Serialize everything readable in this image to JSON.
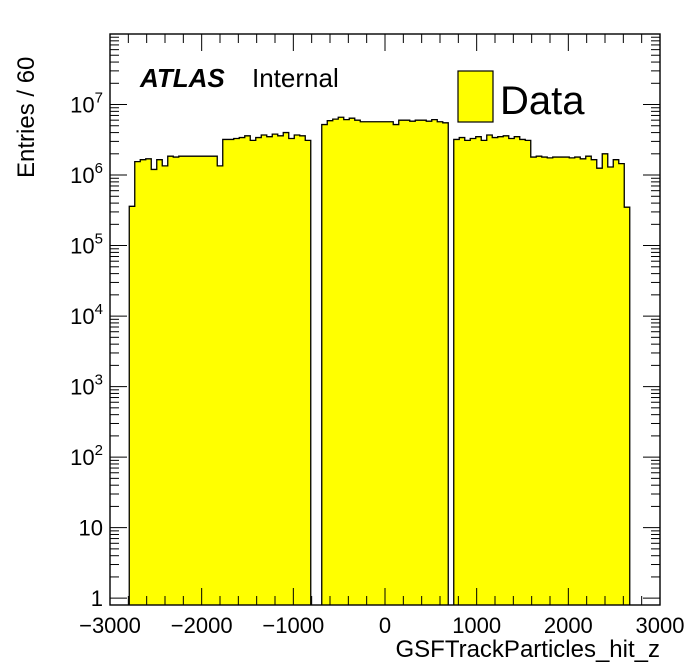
{
  "chart_data": {
    "type": "bar",
    "histogram": true,
    "xlabel": "GSFTrackParticles_hit_z",
    "ylabel": "Entries / 60",
    "xlim": [
      -3000,
      3000
    ],
    "ylim": [
      0.8,
      100000000
    ],
    "y_scale": "log",
    "x_tick_labels": [
      "−3000",
      "−2000",
      "−1000",
      "0",
      "1000",
      "2000",
      "3000"
    ],
    "x_tick_values": [
      -3000,
      -2000,
      -1000,
      0,
      1000,
      2000,
      3000
    ],
    "y_tick_labels": [
      {
        "value": 1,
        "base": "1",
        "exp": ""
      },
      {
        "value": 10,
        "base": "10",
        "exp": ""
      },
      {
        "value": 100,
        "base": "10",
        "exp": "2"
      },
      {
        "value": 1000,
        "base": "10",
        "exp": "3"
      },
      {
        "value": 10000,
        "base": "10",
        "exp": "4"
      },
      {
        "value": 100000,
        "base": "10",
        "exp": "5"
      },
      {
        "value": 1000000,
        "base": "10",
        "exp": "6"
      },
      {
        "value": 10000000,
        "base": "10",
        "exp": "7"
      }
    ],
    "bin_width": 60,
    "fill_color": "#ffff00",
    "line_color": "#000000",
    "series": [
      {
        "name": "Data",
        "segments": [
          {
            "x_start": -2790,
            "values": [
              360000,
              1550000,
              1650000,
              1700000,
              1200000,
              1650000,
              1350000,
              1850000,
              1800000,
              1850000,
              1850000,
              1850000,
              1850000,
              1850000,
              1850000,
              1850000,
              1350000,
              3200000,
              3200000,
              3300000,
              3400000,
              3600000,
              3100000,
              3400000,
              3700000,
              3500000,
              3800000,
              3600000,
              4000000,
              3300000,
              3700000,
              3600000,
              3100000
            ]
          },
          {
            "x_start": -690,
            "values": [
              5200000,
              5900000,
              6200000,
              6600000,
              6100000,
              6400000,
              6000000,
              5700000,
              5700000,
              5700000,
              5700000,
              5700000,
              5700000,
              5200000,
              6000000,
              6000000,
              5800000,
              6000000,
              6000000,
              5800000,
              6100000,
              5700000,
              5500000
            ]
          },
          {
            "x_start": 750,
            "values": [
              3200000,
              3400000,
              3100000,
              3300000,
              3500000,
              3100000,
              3700000,
              3400000,
              3500000,
              3600000,
              3300000,
              3500000,
              3200000,
              3100000,
              1800000,
              1850000,
              1800000,
              1750000,
              1800000,
              1800000,
              1800000,
              1750000,
              1800000,
              1700000,
              1850000,
              1650000,
              1250000,
              2000000,
              1300000,
              1650000,
              1450000,
              350000
            ]
          }
        ]
      }
    ],
    "legend": {
      "entries": [
        "Data"
      ],
      "position": "top-right"
    }
  },
  "labels": {
    "experiment": "ATLAS",
    "status": "Internal"
  }
}
